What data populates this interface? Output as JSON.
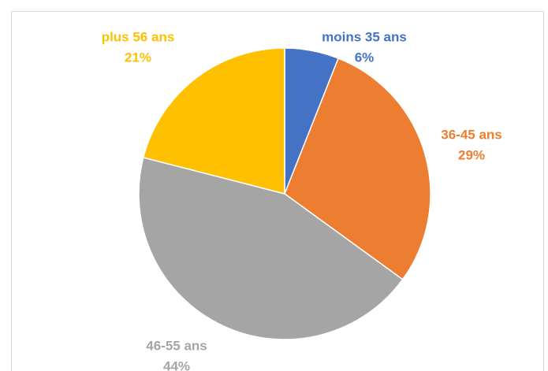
{
  "chart_data": {
    "type": "pie",
    "categories": [
      "moins 35 ans",
      "36-45 ans",
      "46-55 ans",
      "plus 56 ans"
    ],
    "values": [
      6,
      29,
      44,
      21
    ],
    "value_labels": [
      "6%",
      "29%",
      "44%",
      "21%"
    ],
    "colors": [
      "#4472c4",
      "#ed7d31",
      "#a5a5a5",
      "#ffc000"
    ]
  }
}
